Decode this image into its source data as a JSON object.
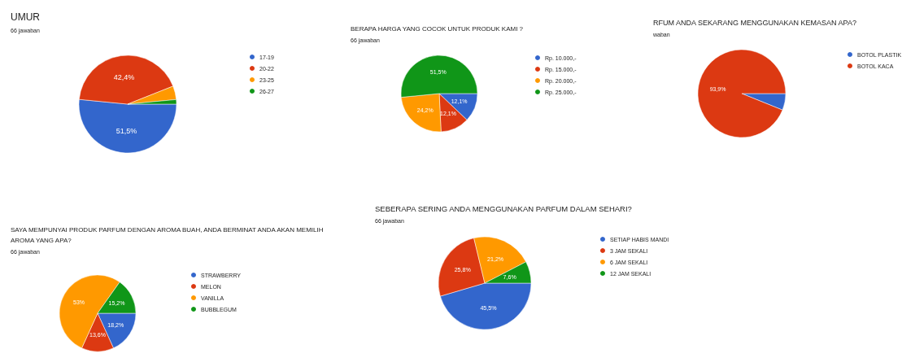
{
  "chart_data": [
    {
      "type": "pie",
      "title": "UMUR",
      "subtitle": "66 jawaban",
      "categories": [
        "17-19",
        "20-22",
        "23-25",
        "26-27"
      ],
      "values": [
        51.5,
        42.4,
        4.5,
        1.5
      ],
      "value_labels": [
        "51,5%",
        "42,4%",
        null,
        null
      ],
      "colors": [
        "#3366cc",
        "#dc3912",
        "#ff9900",
        "#109618"
      ],
      "legend": "right"
    },
    {
      "type": "pie",
      "title": "BERAPA HARGA YANG COCOK UNTUK PRODUK KAMI ?",
      "subtitle": "66 jawaban",
      "categories": [
        "Rp. 10.000,-",
        "Rp. 15.000,-",
        "Rp. 20.000,-",
        "Rp. 25.000,-"
      ],
      "values": [
        12.1,
        12.1,
        24.2,
        51.5
      ],
      "value_labels": [
        "12,1%",
        "12,1%",
        "24,2%",
        "51,5%"
      ],
      "colors": [
        "#3366cc",
        "#dc3912",
        "#ff9900",
        "#109618"
      ],
      "legend": "right"
    },
    {
      "type": "pie",
      "title": "RFUM ANDA SEKARANG MENGGUNAKAN KEMASAN APA?",
      "subtitle": "waban",
      "categories": [
        "BOTOL PLASTIK",
        "BOTOL KACA"
      ],
      "values": [
        6.1,
        93.9
      ],
      "value_labels": [
        null,
        "93,9%"
      ],
      "colors": [
        "#3366cc",
        "#dc3912"
      ],
      "legend": "right"
    },
    {
      "type": "pie",
      "title": "SAYA MEMPUNYAI PRODUK PARFUM DENGAN AROMA BUAH, ANDA BERMINAT ANDA AKAN MEMILIH AROMA YANG APA?",
      "subtitle": "66 jawaban",
      "categories": [
        "STRAWBERRY",
        "MELON",
        "VANILLA",
        "BUBBLEGUM"
      ],
      "values": [
        18.2,
        13.6,
        53,
        15.2
      ],
      "value_labels": [
        "18,2%",
        "13,6%",
        "53%",
        "15,2%"
      ],
      "colors": [
        "#3366cc",
        "#dc3912",
        "#ff9900",
        "#109618"
      ],
      "legend": "right"
    },
    {
      "type": "pie",
      "title": "SEBERAPA SERING ANDA MENGGUNAKAN PARFUM DALAM SEHARI?",
      "subtitle": "66 jawaban",
      "categories": [
        "SETIAP HABIS MANDI",
        "3 JAM SEKALI",
        "6 JAM SEKALI",
        "12 JAM SEKALI"
      ],
      "values": [
        45.5,
        25.8,
        21.2,
        7.6
      ],
      "value_labels": [
        "45,5%",
        "25,8%",
        "21,2%",
        "7,6%"
      ],
      "colors": [
        "#3366cc",
        "#dc3912",
        "#ff9900",
        "#109618"
      ],
      "legend": "right"
    }
  ]
}
